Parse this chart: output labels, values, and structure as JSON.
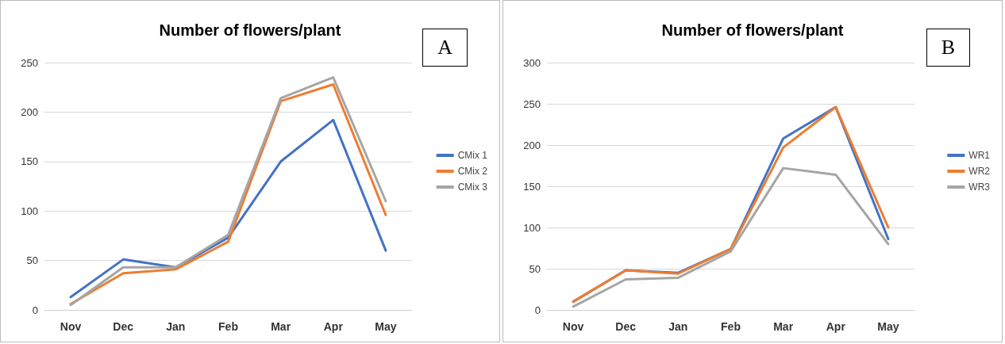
{
  "chart_data": [
    {
      "type": "line",
      "title": "Number of flowers/plant",
      "annotations": [
        "A"
      ],
      "categories": [
        "Nov",
        "Dec",
        "Jan",
        "Feb",
        "Mar",
        "Apr",
        "May"
      ],
      "series": [
        {
          "name": "CMix 1",
          "color": "#4472c4",
          "values": [
            13,
            51,
            43,
            73,
            150,
            192,
            60
          ]
        },
        {
          "name": "CMix 2",
          "color": "#ed7d31",
          "values": [
            6,
            37,
            41,
            69,
            211,
            228,
            96
          ]
        },
        {
          "name": "CMix 3",
          "color": "#a5a5a5",
          "values": [
            5,
            43,
            43,
            76,
            214,
            235,
            110
          ]
        }
      ],
      "ylim": [
        0,
        250
      ],
      "yticks": [
        0,
        50,
        100,
        150,
        200,
        250
      ],
      "grid": "y",
      "legend": "right",
      "marker": "none"
    },
    {
      "type": "line",
      "title": "Number of flowers/plant",
      "annotations": [
        "B"
      ],
      "categories": [
        "Nov",
        "Dec",
        "Jan",
        "Feb",
        "Mar",
        "Apr",
        "May"
      ],
      "series": [
        {
          "name": "WR1",
          "color": "#4472c4",
          "values": [
            10,
            48,
            45,
            74,
            208,
            246,
            86
          ]
        },
        {
          "name": "WR2",
          "color": "#ed7d31",
          "values": [
            10,
            48,
            44,
            74,
            197,
            246,
            100
          ]
        },
        {
          "name": "WR3",
          "color": "#a5a5a5",
          "values": [
            4,
            37,
            39,
            71,
            172,
            164,
            80
          ]
        }
      ],
      "ylim": [
        0,
        300
      ],
      "yticks": [
        0,
        50,
        100,
        150,
        200,
        250,
        300
      ],
      "grid": "y",
      "legend": "right",
      "marker": "none"
    }
  ]
}
